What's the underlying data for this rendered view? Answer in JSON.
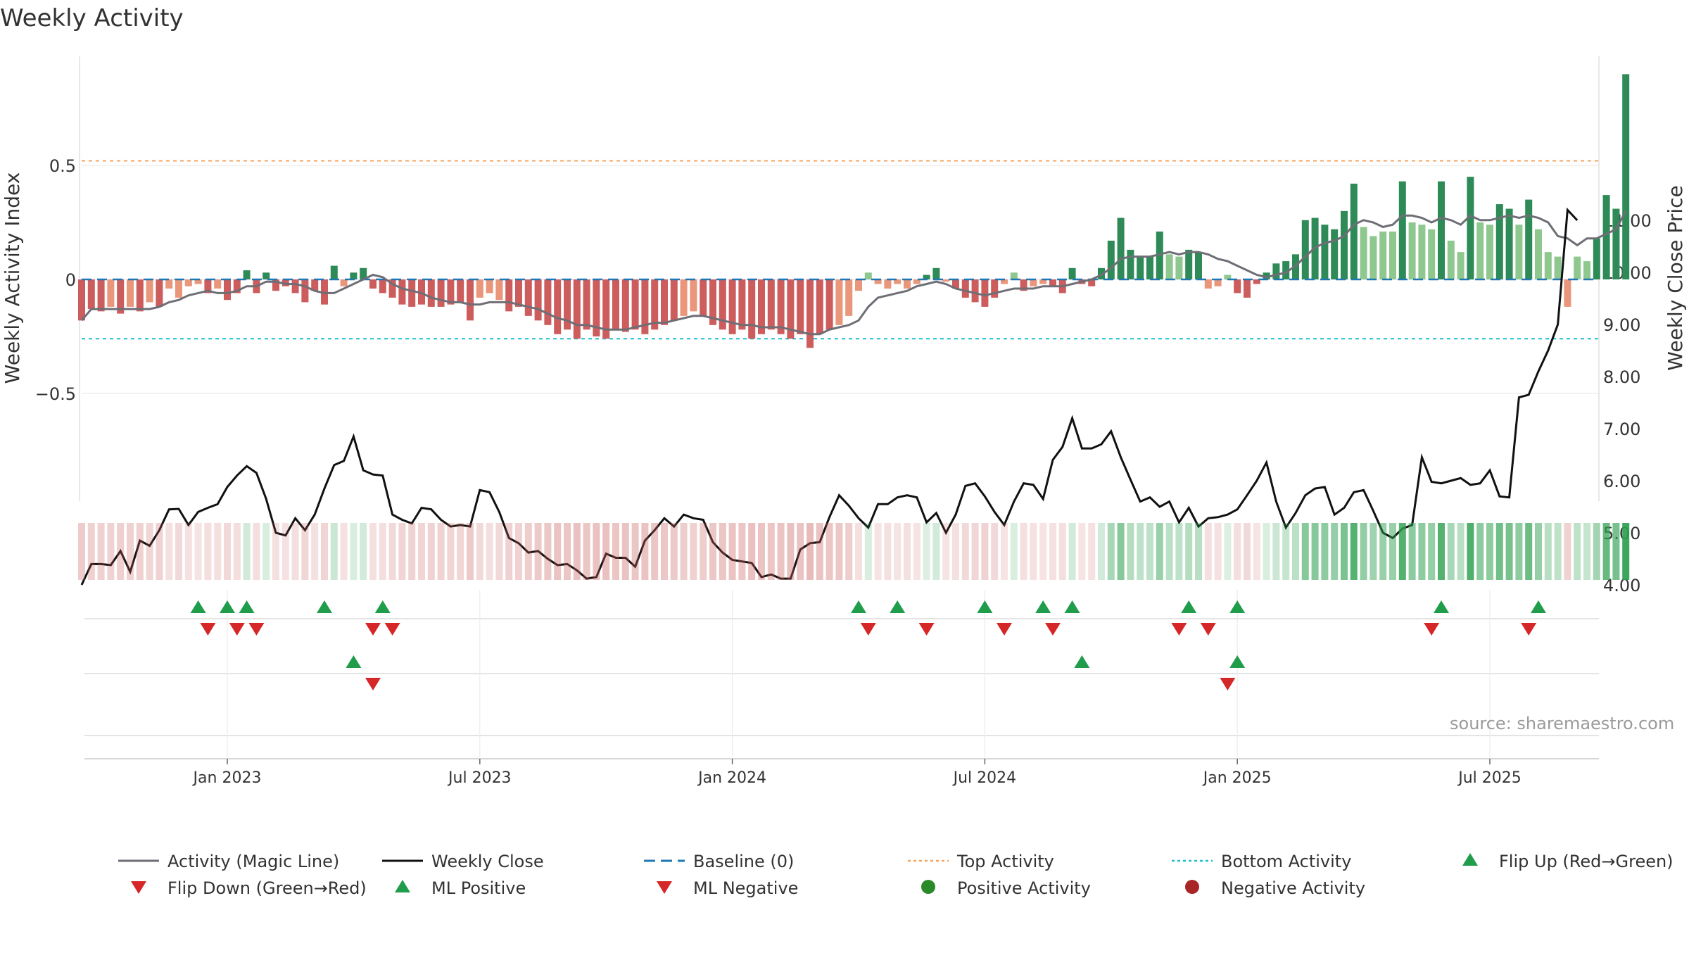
{
  "chart_data": {
    "type": "bar",
    "title": "Weekly Activity",
    "source": "source: sharemaestro.com",
    "ylabel": "Weekly Activity Index",
    "y2label": "Weekly Close Price",
    "ylim": [
      -0.97,
      0.97
    ],
    "y2lim": [
      3.0,
      11.6
    ],
    "yticks": [
      {
        "v": 0.5,
        "label": "0.5"
      },
      {
        "v": 0,
        "label": "0"
      },
      {
        "v": -0.5,
        "label": "−0.5"
      }
    ],
    "y2ticks": [
      {
        "v": 4,
        "label": "4.00"
      },
      {
        "v": 5,
        "label": "5.00"
      },
      {
        "v": 6,
        "label": "6.00"
      },
      {
        "v": 7,
        "label": "7.00"
      },
      {
        "v": 8,
        "label": "8.00"
      },
      {
        "v": 9,
        "label": "9.00"
      },
      {
        "v": 10,
        "label": "10.00"
      },
      {
        "v": 11,
        "label": "11.00"
      }
    ],
    "xticks": [
      {
        "week": 15,
        "label": "Jan 2023"
      },
      {
        "week": 41,
        "label": "Jul 2023"
      },
      {
        "week": 67,
        "label": "Jan 2024"
      },
      {
        "week": 93,
        "label": "Jul 2024"
      },
      {
        "week": 119,
        "label": "Jan 2025"
      },
      {
        "week": 145,
        "label": "Jul 2025"
      }
    ],
    "top_activity": 0.52,
    "bottom_activity": -0.26,
    "activity": [
      -0.18,
      -0.13,
      -0.14,
      -0.12,
      -0.15,
      -0.12,
      -0.14,
      -0.1,
      -0.12,
      -0.04,
      -0.08,
      -0.03,
      -0.02,
      -0.06,
      -0.04,
      -0.09,
      -0.06,
      0.04,
      -0.06,
      0.03,
      -0.05,
      -0.03,
      -0.06,
      -0.1,
      -0.05,
      -0.11,
      0.06,
      -0.03,
      0.03,
      0.05,
      -0.04,
      -0.06,
      -0.08,
      -0.11,
      -0.12,
      -0.11,
      -0.12,
      -0.12,
      -0.11,
      -0.1,
      -0.18,
      -0.08,
      -0.06,
      -0.09,
      -0.14,
      -0.12,
      -0.16,
      -0.18,
      -0.2,
      -0.24,
      -0.22,
      -0.26,
      -0.22,
      -0.25,
      -0.26,
      -0.22,
      -0.23,
      -0.22,
      -0.24,
      -0.22,
      -0.2,
      -0.18,
      -0.16,
      -0.14,
      -0.16,
      -0.2,
      -0.22,
      -0.24,
      -0.22,
      -0.26,
      -0.24,
      -0.22,
      -0.24,
      -0.26,
      -0.24,
      -0.3,
      -0.24,
      -0.22,
      -0.2,
      -0.16,
      -0.05,
      0.03,
      -0.02,
      -0.04,
      -0.02,
      -0.04,
      -0.02,
      0.02,
      0.05,
      -0.01,
      -0.04,
      -0.08,
      -0.1,
      -0.12,
      -0.08,
      -0.02,
      0.03,
      -0.05,
      -0.03,
      -0.02,
      -0.03,
      -0.06,
      0.05,
      -0.02,
      -0.03,
      0.05,
      0.17,
      0.27,
      0.13,
      0.1,
      0.1,
      0.21,
      0.11,
      0.1,
      0.13,
      0.12,
      -0.04,
      -0.03,
      0.02,
      -0.06,
      -0.08,
      -0.02,
      0.03,
      0.07,
      0.08,
      0.11,
      0.26,
      0.27,
      0.24,
      0.22,
      0.3,
      0.42,
      0.23,
      0.19,
      0.21,
      0.21,
      0.43,
      0.25,
      0.24,
      0.22,
      0.43,
      0.17,
      0.12,
      0.45,
      0.25,
      0.24,
      0.33,
      0.31,
      0.24,
      0.35,
      0.22,
      0.12,
      0.1,
      -0.12,
      0.1,
      0.08,
      0.18,
      0.37,
      0.31,
      0.9
    ],
    "magic_line": [
      -0.18,
      -0.13,
      -0.13,
      -0.13,
      -0.13,
      -0.13,
      -0.13,
      -0.13,
      -0.12,
      -0.1,
      -0.09,
      -0.07,
      -0.06,
      -0.05,
      -0.06,
      -0.06,
      -0.05,
      -0.03,
      -0.03,
      -0.01,
      -0.01,
      -0.02,
      -0.02,
      -0.03,
      -0.05,
      -0.06,
      -0.06,
      -0.04,
      -0.02,
      0,
      0.02,
      0.01,
      -0.02,
      -0.04,
      -0.05,
      -0.06,
      -0.08,
      -0.09,
      -0.1,
      -0.1,
      -0.11,
      -0.11,
      -0.1,
      -0.1,
      -0.1,
      -0.11,
      -0.12,
      -0.13,
      -0.15,
      -0.17,
      -0.18,
      -0.2,
      -0.2,
      -0.21,
      -0.22,
      -0.22,
      -0.22,
      -0.21,
      -0.2,
      -0.19,
      -0.19,
      -0.18,
      -0.17,
      -0.16,
      -0.16,
      -0.17,
      -0.18,
      -0.19,
      -0.2,
      -0.2,
      -0.21,
      -0.21,
      -0.21,
      -0.22,
      -0.23,
      -0.24,
      -0.24,
      -0.22,
      -0.21,
      -0.2,
      -0.18,
      -0.12,
      -0.08,
      -0.07,
      -0.06,
      -0.05,
      -0.03,
      -0.02,
      -0.01,
      -0.02,
      -0.04,
      -0.05,
      -0.06,
      -0.07,
      -0.06,
      -0.05,
      -0.04,
      -0.04,
      -0.04,
      -0.03,
      -0.03,
      -0.03,
      -0.02,
      -0.01,
      0,
      0.02,
      0.05,
      0.09,
      0.1,
      0.1,
      0.1,
      0.11,
      0.12,
      0.11,
      0.12,
      0.12,
      0.11,
      0.09,
      0.08,
      0.06,
      0.04,
      0.02,
      0.01,
      0.02,
      0.03,
      0.06,
      0.1,
      0.14,
      0.16,
      0.17,
      0.19,
      0.24,
      0.26,
      0.25,
      0.23,
      0.24,
      0.28,
      0.28,
      0.27,
      0.25,
      0.27,
      0.26,
      0.24,
      0.28,
      0.26,
      0.26,
      0.27,
      0.28,
      0.27,
      0.28,
      0.27,
      0.25,
      0.19,
      0.18,
      0.15,
      0.18,
      0.18,
      0.2,
      0.22,
      0.3
    ],
    "weekly_close": [
      4.0,
      4.4,
      4.4,
      4.38,
      4.65,
      4.25,
      4.85,
      4.75,
      5.05,
      5.45,
      5.46,
      5.15,
      5.4,
      5.48,
      5.55,
      5.88,
      6.1,
      6.28,
      6.15,
      5.65,
      5.0,
      4.95,
      5.28,
      5.05,
      5.35,
      5.85,
      6.3,
      6.38,
      6.85,
      6.2,
      6.12,
      6.1,
      5.35,
      5.25,
      5.18,
      5.48,
      5.45,
      5.25,
      5.12,
      5.15,
      5.12,
      5.82,
      5.78,
      5.4,
      4.9,
      4.8,
      4.62,
      4.65,
      4.5,
      4.38,
      4.4,
      4.28,
      4.12,
      4.15,
      4.6,
      4.52,
      4.52,
      4.35,
      4.85,
      5.05,
      5.28,
      5.12,
      5.35,
      5.28,
      5.25,
      4.82,
      4.62,
      4.48,
      4.45,
      4.42,
      4.15,
      4.2,
      4.12,
      4.12,
      4.68,
      4.8,
      4.82,
      5.3,
      5.72,
      5.52,
      5.28,
      5.1,
      5.55,
      5.55,
      5.68,
      5.72,
      5.68,
      5.2,
      5.38,
      5.0,
      5.35,
      5.9,
      5.95,
      5.7,
      5.4,
      5.15,
      5.6,
      5.95,
      5.92,
      5.65,
      6.4,
      6.65,
      7.2,
      6.62,
      6.62,
      6.7,
      6.95,
      6.45,
      6.02,
      5.6,
      5.68,
      5.5,
      5.6,
      5.2,
      5.48,
      5.12,
      5.28,
      5.3,
      5.35,
      5.45,
      5.72,
      6.0,
      6.35,
      5.6,
      5.1,
      5.38,
      5.72,
      5.85,
      5.88,
      5.35,
      5.48,
      5.78,
      5.82,
      5.42,
      5.0,
      4.9,
      5.08,
      5.15,
      6.45,
      5.98,
      5.95,
      6.0,
      6.05,
      5.92,
      5.95,
      6.2,
      5.7,
      5.68,
      7.6,
      7.65,
      8.1,
      8.5,
      9.0,
      11.2,
      11.0
    ],
    "heat_strip": [
      -0.38,
      -0.3,
      -0.32,
      -0.28,
      -0.34,
      -0.3,
      -0.32,
      -0.24,
      -0.28,
      -0.12,
      -0.2,
      -0.08,
      -0.06,
      -0.14,
      -0.1,
      -0.22,
      -0.14,
      0.12,
      -0.14,
      0.08,
      -0.12,
      -0.08,
      -0.14,
      -0.24,
      -0.12,
      -0.26,
      0.16,
      -0.08,
      0.08,
      0.12,
      -0.1,
      -0.14,
      -0.2,
      -0.26,
      -0.28,
      -0.26,
      -0.28,
      -0.28,
      -0.26,
      -0.24,
      -0.4,
      -0.2,
      -0.14,
      -0.22,
      -0.32,
      -0.28,
      -0.36,
      -0.4,
      -0.44,
      -0.5,
      -0.46,
      -0.54,
      -0.46,
      -0.52,
      -0.54,
      -0.46,
      -0.48,
      -0.46,
      -0.5,
      -0.46,
      -0.44,
      -0.4,
      -0.36,
      -0.32,
      -0.36,
      -0.44,
      -0.46,
      -0.5,
      -0.46,
      -0.54,
      -0.5,
      -0.46,
      -0.5,
      -0.54,
      -0.5,
      -0.6,
      -0.5,
      -0.46,
      -0.44,
      -0.36,
      -0.12,
      0.08,
      -0.06,
      -0.1,
      -0.06,
      -0.1,
      -0.06,
      0.06,
      0.12,
      -0.04,
      -0.1,
      -0.2,
      -0.24,
      -0.28,
      -0.2,
      -0.06,
      0.08,
      -0.12,
      -0.08,
      -0.06,
      -0.08,
      -0.14,
      0.12,
      -0.06,
      -0.08,
      0.12,
      0.38,
      0.58,
      0.3,
      0.24,
      0.24,
      0.46,
      0.26,
      0.24,
      0.3,
      0.28,
      -0.1,
      -0.08,
      0.06,
      -0.14,
      -0.2,
      -0.06,
      0.08,
      0.16,
      0.2,
      0.26,
      0.56,
      0.58,
      0.52,
      0.48,
      0.64,
      0.86,
      0.5,
      0.42,
      0.46,
      0.46,
      0.88,
      0.54,
      0.52,
      0.48,
      0.88,
      0.38,
      0.28,
      0.9,
      0.54,
      0.52,
      0.7,
      0.66,
      0.52,
      0.72,
      0.48,
      0.28,
      0.24,
      -0.28,
      0.24,
      0.2,
      0.4,
      0.76,
      0.66,
      1.0
    ],
    "flip_up_row1": [
      12,
      15,
      17,
      25,
      31,
      80,
      84,
      93,
      99,
      102,
      114,
      119,
      140,
      150
    ],
    "flip_down_row1": [
      13,
      16,
      18,
      30,
      32,
      81,
      87,
      95,
      100,
      113,
      116,
      139,
      149
    ],
    "ml_positive_row2": [
      28,
      103,
      119
    ],
    "ml_negative_row2": [
      30,
      118
    ],
    "colors": {
      "pos_strong": "#2e8b57",
      "pos_light": "#8fc88f",
      "neg_strong": "#cd5c5c",
      "neg_light": "#e9967a",
      "magic_line": "#6e6e76",
      "close_line": "#111111",
      "baseline": "#1f77b4",
      "top_line": "#f4a460",
      "bottom_line": "#17becf",
      "up_marker": "#1f9d4a",
      "down_marker": "#d62728",
      "pos_dot": "#2a8a2a",
      "neg_dot": "#a82626",
      "grid": "#e6e6e6"
    },
    "legend": [
      {
        "label": "Activity (Magic Line)",
        "kind": "line",
        "color_key": "magic_line"
      },
      {
        "label": "Weekly Close",
        "kind": "line",
        "color_key": "close_line"
      },
      {
        "label": "Baseline (0)",
        "kind": "dash",
        "color_key": "baseline"
      },
      {
        "label": "Top Activity",
        "kind": "dot-line",
        "color_key": "top_line"
      },
      {
        "label": "Bottom Activity",
        "kind": "dot-line",
        "color_key": "bottom_line"
      },
      {
        "label": "Flip Up (Red→Green)",
        "kind": "tri-up",
        "color_key": "up_marker"
      },
      {
        "label": "Flip Down (Green→Red)",
        "kind": "tri-down",
        "color_key": "down_marker"
      },
      {
        "label": "ML Positive",
        "kind": "tri-up",
        "color_key": "up_marker"
      },
      {
        "label": "ML Negative",
        "kind": "tri-down",
        "color_key": "down_marker"
      },
      {
        "label": "Positive Activity",
        "kind": "dot",
        "color_key": "pos_dot"
      },
      {
        "label": "Negative Activity",
        "kind": "dot",
        "color_key": "neg_dot"
      }
    ]
  }
}
